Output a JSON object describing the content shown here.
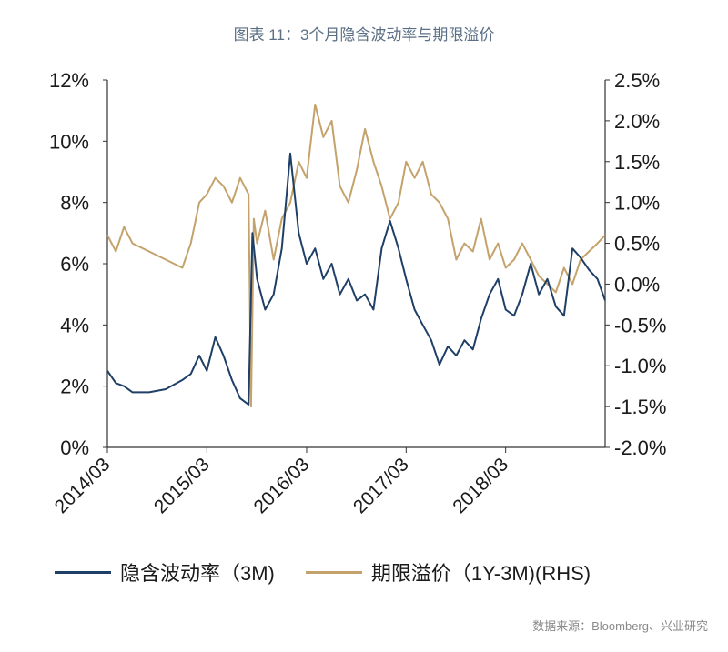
{
  "page": {
    "title": "图表 11：3个月隐含波动率与期限溢价",
    "source": "数据来源：Bloomberg、兴业研究"
  },
  "chart_data": {
    "type": "line",
    "title": "图表 11：3个月隐含波动率与期限溢价",
    "x_range": [
      "2014-03",
      "2019-03"
    ],
    "x_ticks": [
      "2014/03",
      "2015/03",
      "2016/03",
      "2017/03",
      "2018/03"
    ],
    "y_left": {
      "min": 0,
      "max": 12,
      "ticks": [
        "0%",
        "2%",
        "4%",
        "6%",
        "8%",
        "10%",
        "12%"
      ]
    },
    "y_right": {
      "min": -2.0,
      "max": 2.5,
      "ticks": [
        "-2.0%",
        "-1.5%",
        "-1.0%",
        "-0.5%",
        "0.0%",
        "0.5%",
        "1.0%",
        "1.5%",
        "2.0%",
        "2.5%"
      ]
    },
    "grid": false,
    "legend_position": "bottom",
    "series": [
      {
        "name": "隐含波动率（3M)",
        "axis": "left",
        "color": "#1f3f66",
        "points": [
          [
            "2014-03",
            2.5
          ],
          [
            "2014-04",
            2.1
          ],
          [
            "2014-05",
            2.0
          ],
          [
            "2014-06",
            1.8
          ],
          [
            "2014-08",
            1.8
          ],
          [
            "2014-10",
            1.9
          ],
          [
            "2014-12",
            2.2
          ],
          [
            "2015-01",
            2.4
          ],
          [
            "2015-02",
            3.0
          ],
          [
            "2015-03",
            2.5
          ],
          [
            "2015-04",
            3.6
          ],
          [
            "2015-05",
            3.0
          ],
          [
            "2015-06",
            2.2
          ],
          [
            "2015-07",
            1.6
          ],
          [
            "2015-08",
            1.4
          ],
          [
            "2015-08-15",
            7.0
          ],
          [
            "2015-09",
            5.5
          ],
          [
            "2015-10",
            4.5
          ],
          [
            "2015-11",
            5.0
          ],
          [
            "2015-12",
            6.5
          ],
          [
            "2016-01",
            9.6
          ],
          [
            "2016-02",
            7.0
          ],
          [
            "2016-03",
            6.0
          ],
          [
            "2016-04",
            6.5
          ],
          [
            "2016-05",
            5.5
          ],
          [
            "2016-06",
            6.0
          ],
          [
            "2016-07",
            5.0
          ],
          [
            "2016-08",
            5.5
          ],
          [
            "2016-09",
            4.8
          ],
          [
            "2016-10",
            5.0
          ],
          [
            "2016-11",
            4.5
          ],
          [
            "2016-12",
            6.5
          ],
          [
            "2017-01",
            7.4
          ],
          [
            "2017-02",
            6.5
          ],
          [
            "2017-03",
            5.5
          ],
          [
            "2017-04",
            4.5
          ],
          [
            "2017-05",
            4.0
          ],
          [
            "2017-06",
            3.5
          ],
          [
            "2017-07",
            2.7
          ],
          [
            "2017-08",
            3.3
          ],
          [
            "2017-09",
            3.0
          ],
          [
            "2017-10",
            3.5
          ],
          [
            "2017-11",
            3.2
          ],
          [
            "2017-12",
            4.2
          ],
          [
            "2018-01",
            5.0
          ],
          [
            "2018-02",
            5.5
          ],
          [
            "2018-03",
            4.5
          ],
          [
            "2018-04",
            4.3
          ],
          [
            "2018-05",
            5.0
          ],
          [
            "2018-06",
            6.0
          ],
          [
            "2018-07",
            5.0
          ],
          [
            "2018-08",
            5.5
          ],
          [
            "2018-09",
            4.6
          ],
          [
            "2018-10",
            4.3
          ],
          [
            "2018-11",
            6.5
          ],
          [
            "2018-12",
            6.2
          ],
          [
            "2019-01",
            5.8
          ],
          [
            "2019-02",
            5.5
          ],
          [
            "2019-03",
            4.8
          ]
        ]
      },
      {
        "name": "期限溢价（1Y-3M)(RHS)",
        "axis": "right",
        "color": "#c4a26b",
        "points": [
          [
            "2014-03",
            0.6
          ],
          [
            "2014-04",
            0.4
          ],
          [
            "2014-05",
            0.7
          ],
          [
            "2014-06",
            0.5
          ],
          [
            "2014-08",
            0.4
          ],
          [
            "2014-10",
            0.3
          ],
          [
            "2014-12",
            0.2
          ],
          [
            "2015-01",
            0.5
          ],
          [
            "2015-02",
            1.0
          ],
          [
            "2015-03",
            1.1
          ],
          [
            "2015-04",
            1.3
          ],
          [
            "2015-05",
            1.2
          ],
          [
            "2015-06",
            1.0
          ],
          [
            "2015-07",
            1.3
          ],
          [
            "2015-08",
            1.1
          ],
          [
            "2015-08-10",
            -1.5
          ],
          [
            "2015-08-20",
            0.8
          ],
          [
            "2015-09",
            0.5
          ],
          [
            "2015-10",
            0.9
          ],
          [
            "2015-11",
            0.3
          ],
          [
            "2015-12",
            0.8
          ],
          [
            "2016-01",
            1.0
          ],
          [
            "2016-02",
            1.5
          ],
          [
            "2016-03",
            1.3
          ],
          [
            "2016-04",
            2.2
          ],
          [
            "2016-05",
            1.8
          ],
          [
            "2016-06",
            2.0
          ],
          [
            "2016-07",
            1.2
          ],
          [
            "2016-08",
            1.0
          ],
          [
            "2016-09",
            1.4
          ],
          [
            "2016-10",
            1.9
          ],
          [
            "2016-11",
            1.5
          ],
          [
            "2016-12",
            1.2
          ],
          [
            "2017-01",
            0.8
          ],
          [
            "2017-02",
            1.0
          ],
          [
            "2017-03",
            1.5
          ],
          [
            "2017-04",
            1.3
          ],
          [
            "2017-05",
            1.5
          ],
          [
            "2017-06",
            1.1
          ],
          [
            "2017-07",
            1.0
          ],
          [
            "2017-08",
            0.8
          ],
          [
            "2017-09",
            0.3
          ],
          [
            "2017-10",
            0.5
          ],
          [
            "2017-11",
            0.4
          ],
          [
            "2017-12",
            0.8
          ],
          [
            "2018-01",
            0.3
          ],
          [
            "2018-02",
            0.5
          ],
          [
            "2018-03",
            0.2
          ],
          [
            "2018-04",
            0.3
          ],
          [
            "2018-05",
            0.5
          ],
          [
            "2018-06",
            0.3
          ],
          [
            "2018-07",
            0.1
          ],
          [
            "2018-08",
            0.0
          ],
          [
            "2018-09",
            -0.1
          ],
          [
            "2018-10",
            0.2
          ],
          [
            "2018-11",
            0.0
          ],
          [
            "2018-12",
            0.3
          ],
          [
            "2019-01",
            0.4
          ],
          [
            "2019-02",
            0.5
          ],
          [
            "2019-03",
            0.6
          ]
        ]
      }
    ]
  }
}
